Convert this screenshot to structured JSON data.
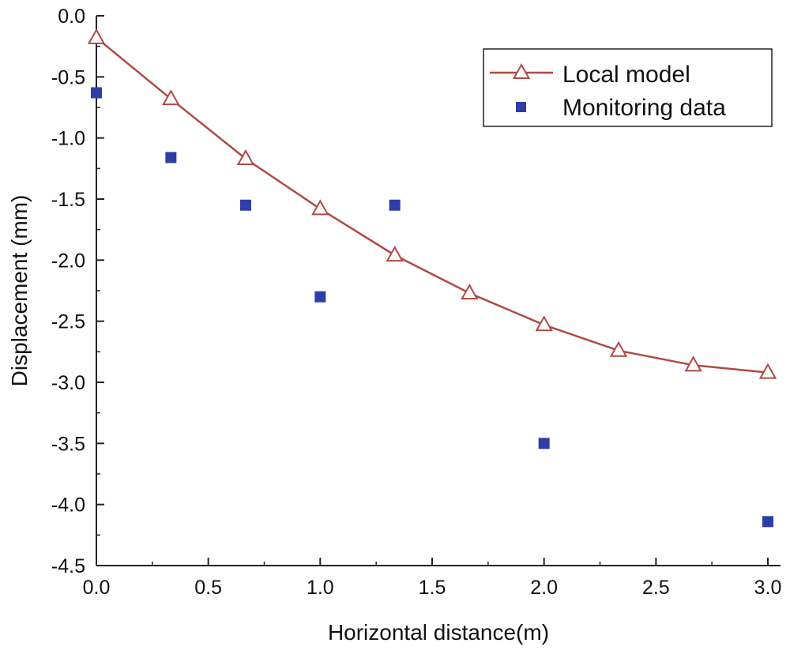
{
  "chart_data": {
    "type": "scatter",
    "title": "",
    "xlabel": "Horizontal distance(m)",
    "ylabel": "Displacement (mm)",
    "xlim": [
      0.0,
      3.0
    ],
    "ylim": [
      -4.5,
      0.0
    ],
    "x_ticks": [
      "0.0",
      "0.5",
      "1.0",
      "1.5",
      "2.0",
      "2.5",
      "3.0"
    ],
    "y_ticks": [
      "0.0",
      "-0.5",
      "-1.0",
      "-1.5",
      "-2.0",
      "-2.5",
      "-3.0",
      "-3.5",
      "-4.0",
      "-4.5"
    ],
    "grid": false,
    "legend_position": "top-right",
    "series": [
      {
        "name": "Local model",
        "style": "line-with-open-triangle-markers",
        "color": "#b04a44",
        "x": [
          0.0,
          0.333,
          0.667,
          1.0,
          1.333,
          1.667,
          2.0,
          2.333,
          2.667,
          3.0
        ],
        "y": [
          -0.18,
          -0.68,
          -1.17,
          -1.58,
          -1.96,
          -2.27,
          -2.53,
          -2.74,
          -2.86,
          -2.92
        ]
      },
      {
        "name": "Monitoring data",
        "style": "filled-square-markers",
        "color": "#2e3ea6",
        "x": [
          0.0,
          0.333,
          0.667,
          1.0,
          1.333,
          2.0,
          3.0
        ],
        "y": [
          -0.63,
          -1.16,
          -1.55,
          -2.3,
          -1.55,
          -3.5,
          -4.14
        ]
      }
    ]
  }
}
